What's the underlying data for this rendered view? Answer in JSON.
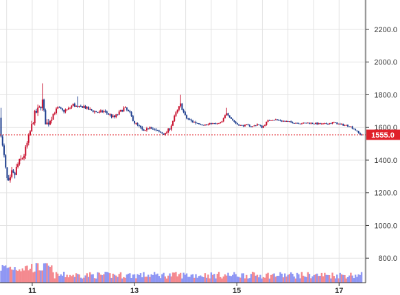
{
  "chart_data": {
    "type": "candlestick",
    "title": "",
    "xlabel": "",
    "ylabel": "",
    "ylim": [
      650,
      2380
    ],
    "y_ticks": [
      "800.0",
      "1000.0",
      "1200.0",
      "1400.0",
      "1600.0",
      "1800.0",
      "2000.0",
      "2200.0"
    ],
    "y_tick_values": [
      800,
      1000,
      1200,
      1400,
      1600,
      1800,
      2000,
      2200
    ],
    "x_ticks": [
      "11",
      "13",
      "15",
      "17"
    ],
    "x_tick_positions": [
      11,
      13,
      15,
      17
    ],
    "xlim": [
      10.37,
      17.52
    ],
    "last_price": 1555,
    "last_price_label": "1555.0",
    "grid": true,
    "colors": {
      "up": "#c8102e",
      "down": "#1f3f8f",
      "volume_up": "#f4898f",
      "volume_down": "#8f97f4",
      "last_price": "#e0202a",
      "grid": "#e3e3e3"
    },
    "price_path": [
      [
        10.37,
        1660
      ],
      [
        10.4,
        1520
      ],
      [
        10.45,
        1420
      ],
      [
        10.5,
        1290
      ],
      [
        10.55,
        1250
      ],
      [
        10.6,
        1320
      ],
      [
        10.65,
        1300
      ],
      [
        10.7,
        1360
      ],
      [
        10.75,
        1390
      ],
      [
        10.8,
        1410
      ],
      [
        10.85,
        1440
      ],
      [
        10.9,
        1500
      ],
      [
        10.95,
        1560
      ],
      [
        11.0,
        1620
      ],
      [
        11.05,
        1680
      ],
      [
        11.1,
        1700
      ],
      [
        11.15,
        1720
      ],
      [
        11.2,
        1760
      ],
      [
        11.25,
        1640
      ],
      [
        11.3,
        1620
      ],
      [
        11.4,
        1680
      ],
      [
        11.5,
        1720
      ],
      [
        11.6,
        1700
      ],
      [
        11.7,
        1710
      ],
      [
        11.8,
        1740
      ],
      [
        11.9,
        1720
      ],
      [
        12.0,
        1730
      ],
      [
        12.1,
        1710
      ],
      [
        12.2,
        1700
      ],
      [
        12.3,
        1690
      ],
      [
        12.4,
        1700
      ],
      [
        12.5,
        1680
      ],
      [
        12.6,
        1660
      ],
      [
        12.7,
        1690
      ],
      [
        12.8,
        1720
      ],
      [
        12.9,
        1690
      ],
      [
        13.0,
        1630
      ],
      [
        13.1,
        1600
      ],
      [
        13.2,
        1570
      ],
      [
        13.3,
        1610
      ],
      [
        13.4,
        1580
      ],
      [
        13.5,
        1570
      ],
      [
        13.6,
        1560
      ],
      [
        13.7,
        1600
      ],
      [
        13.8,
        1680
      ],
      [
        13.9,
        1740
      ],
      [
        14.0,
        1660
      ],
      [
        14.1,
        1640
      ],
      [
        14.2,
        1630
      ],
      [
        14.3,
        1620
      ],
      [
        14.4,
        1615
      ],
      [
        14.5,
        1625
      ],
      [
        14.6,
        1620
      ],
      [
        14.7,
        1630
      ],
      [
        14.8,
        1690
      ],
      [
        14.9,
        1650
      ],
      [
        15.0,
        1620
      ],
      [
        15.1,
        1610
      ],
      [
        15.2,
        1615
      ],
      [
        15.3,
        1605
      ],
      [
        15.4,
        1620
      ],
      [
        15.5,
        1600
      ],
      [
        15.6,
        1640
      ],
      [
        15.7,
        1650
      ],
      [
        15.8,
        1645
      ],
      [
        15.9,
        1640
      ],
      [
        16.0,
        1635
      ],
      [
        16.1,
        1630
      ],
      [
        16.2,
        1628
      ],
      [
        16.3,
        1625
      ],
      [
        16.4,
        1628
      ],
      [
        16.5,
        1625
      ],
      [
        16.6,
        1622
      ],
      [
        16.7,
        1620
      ],
      [
        16.8,
        1625
      ],
      [
        16.9,
        1630
      ],
      [
        17.0,
        1620
      ],
      [
        17.1,
        1615
      ],
      [
        17.2,
        1610
      ],
      [
        17.3,
        1590
      ],
      [
        17.4,
        1560
      ],
      [
        17.45,
        1555
      ]
    ],
    "spikes": [
      {
        "x": 10.4,
        "high": 1720
      },
      {
        "x": 11.2,
        "high": 1870
      },
      {
        "x": 11.9,
        "high": 1790
      },
      {
        "x": 13.9,
        "high": 1800
      },
      {
        "x": 14.8,
        "high": 1720
      }
    ]
  }
}
